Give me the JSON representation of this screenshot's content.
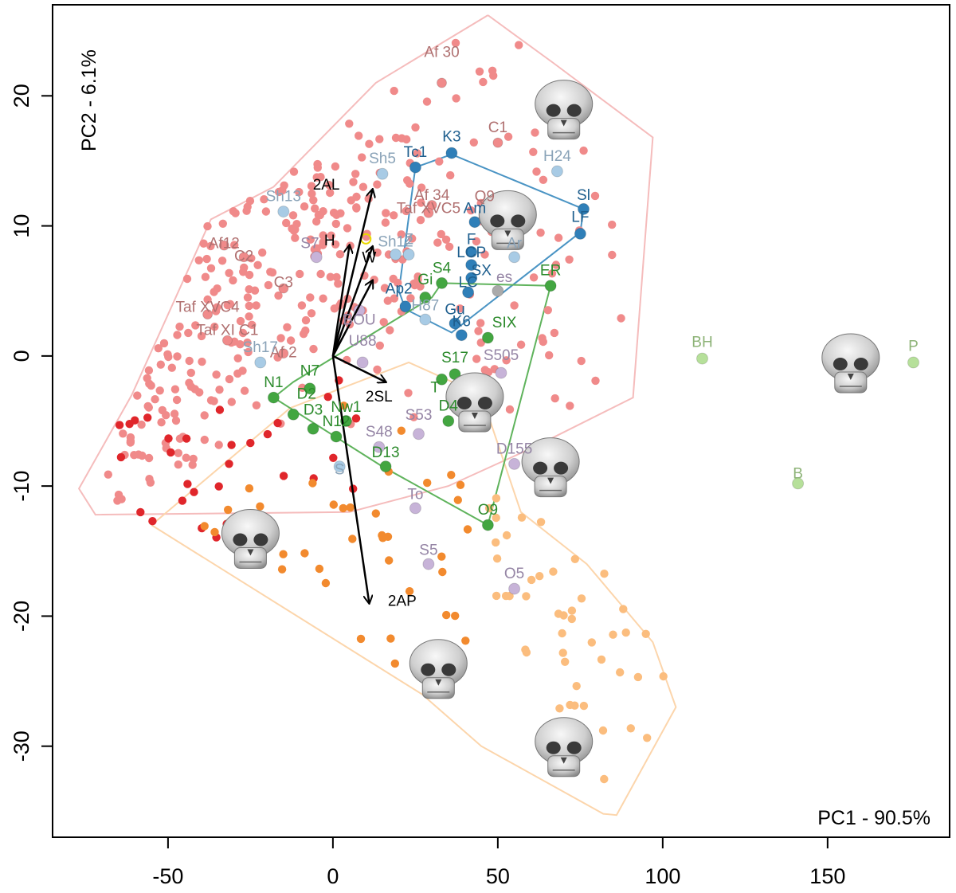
{
  "chart_data": {
    "type": "scatter",
    "title": "",
    "xlabel": "PC1 - 90.5%",
    "ylabel": "PC2 - 6.1%",
    "xlim": [
      -85,
      187
    ],
    "ylim": [
      -37,
      27
    ],
    "xticks": [
      -50,
      0,
      50,
      100,
      150
    ],
    "yticks": [
      -30,
      -20,
      -10,
      0,
      10,
      20
    ],
    "colors": {
      "pinkFill": "#f08a8a",
      "pinkLine": "#f5bcbc",
      "redFill": "#e0262b",
      "orangeFill": "#f28a2e",
      "lightOrangeFill": "#fbbd7e",
      "orangeLine": "#fcd5ab",
      "blueFill": "#2f7fb8",
      "blueLine": "#4a94c4",
      "lightBlueFill": "#a8cbe5",
      "greenFill": "#43a641",
      "greenLine": "#5fb35c",
      "lightGreenFill": "#b6e09a",
      "lavenderFill": "#c7b3d8",
      "greyFill": "#aaaaaa",
      "yellow": "#e8d800",
      "pinkText": "#b07070",
      "blueText": "#1f5f8e",
      "lightBlueText": "#8aa3b8",
      "greenText": "#2b8a2b",
      "lightGreenText": "#8db377",
      "lavenderText": "#9585a5"
    },
    "hulls": [
      {
        "name": "hull-pink",
        "stroke": "pinkLine",
        "points": [
          [
            47,
            26.2
          ],
          [
            67,
            22.5
          ],
          [
            97,
            16.8
          ],
          [
            91,
            -3.2
          ],
          [
            61,
            -7
          ],
          [
            35,
            -10
          ],
          [
            5,
            -12
          ],
          [
            -72,
            -12.2
          ],
          [
            -77,
            -10.2
          ],
          [
            -61,
            -3
          ],
          [
            -37,
            10.5
          ],
          [
            -18,
            13
          ],
          [
            13,
            21
          ],
          [
            47,
            26.2
          ]
        ]
      },
      {
        "name": "hull-orange",
        "stroke": "orangeLine",
        "points": [
          [
            -55,
            -13
          ],
          [
            -13,
            -4
          ],
          [
            23,
            -0.5
          ],
          [
            45,
            -3
          ],
          [
            57,
            -12
          ],
          [
            77,
            -16
          ],
          [
            97,
            -22
          ],
          [
            104,
            -27
          ],
          [
            86,
            -35.3
          ],
          [
            82,
            -35.2
          ],
          [
            45,
            -30
          ],
          [
            27,
            -26
          ],
          [
            -55,
            -13
          ]
        ]
      },
      {
        "name": "hull-blue",
        "stroke": "blueLine",
        "points": [
          [
            25,
            14.5
          ],
          [
            36,
            15.5
          ],
          [
            76,
            11.3
          ],
          [
            75,
            9.5
          ],
          [
            36,
            1.8
          ],
          [
            22,
            3.6
          ],
          [
            20,
            5
          ],
          [
            25,
            14.5
          ]
        ]
      },
      {
        "name": "hull-green",
        "stroke": "greenLine",
        "points": [
          [
            -18,
            -3.2
          ],
          [
            -12,
            -2
          ],
          [
            30,
            4.5
          ],
          [
            33,
            5.6
          ],
          [
            66,
            5.4
          ],
          [
            47,
            -13
          ],
          [
            15,
            -8.5
          ],
          [
            -18,
            -3.2
          ]
        ]
      }
    ],
    "arrows": [
      {
        "label": "2AL",
        "x": 12,
        "y": 12.8,
        "lx": -2,
        "ly": 12.8
      },
      {
        "label": "H",
        "x": 5,
        "y": 8.5,
        "lx": -1,
        "ly": 8.5
      },
      {
        "label": "W",
        "x": 12,
        "y": 8.4,
        "lx": 11,
        "ly": 7.2
      },
      {
        "label": "",
        "x": 12,
        "y": 5.8,
        "lx": 0,
        "ly": 0
      },
      {
        "label": "2SL",
        "x": 16,
        "y": -2,
        "lx": 14,
        "ly": -3.5
      },
      {
        "label": "2AP",
        "x": 11,
        "y": -19,
        "lx": 21,
        "ly": -19.2
      }
    ],
    "labeled_points": [
      {
        "label": "Af 30",
        "x": 33,
        "y": 21,
        "g": "pink",
        "lx": 33,
        "ly": 23
      },
      {
        "label": "C1",
        "x": 50,
        "y": 16.4,
        "g": "pink",
        "lx": 50,
        "ly": 17.2
      },
      {
        "label": "Af 34",
        "x": 30,
        "y": 11.6,
        "g": "pink",
        "lx": 30,
        "ly": 12
      },
      {
        "label": "Taf XVC5",
        "x": 29,
        "y": 11,
        "g": "pink",
        "lx": 29,
        "ly": 11
      },
      {
        "label": "Q9",
        "x": 46,
        "y": 11.2,
        "g": "pink",
        "lx": 46,
        "ly": 11.9
      },
      {
        "label": "Af12",
        "x": -33,
        "y": 8.5,
        "g": "pink",
        "lx": -33,
        "ly": 8.3
      },
      {
        "label": "C2",
        "x": -27,
        "y": 7.6,
        "g": "pink",
        "lx": -27,
        "ly": 7.3
      },
      {
        "label": "C3",
        "x": -15,
        "y": 5.2,
        "g": "pink",
        "lx": -15,
        "ly": 5.3
      },
      {
        "label": "Taf XVC4",
        "x": -38,
        "y": 3.2,
        "g": "pink",
        "lx": -38,
        "ly": 3.4
      },
      {
        "label": "Taf XI C1",
        "x": -32,
        "y": 1.2,
        "g": "pink",
        "lx": -32,
        "ly": 1.6
      },
      {
        "label": "Af 2",
        "x": -15,
        "y": 0.2,
        "g": "pink",
        "lx": -15,
        "ly": -0.1
      },
      {
        "label": "Sh5",
        "x": 15,
        "y": 14,
        "g": "lightblue",
        "lx": 15,
        "ly": 14.8
      },
      {
        "label": "Sh13",
        "x": -15,
        "y": 11.1,
        "g": "lightblue",
        "lx": -15,
        "ly": 11.9
      },
      {
        "label": "H24",
        "x": 68,
        "y": 14.2,
        "g": "lightblue",
        "lx": 68,
        "ly": 15
      },
      {
        "label": "Sh12",
        "x": 19,
        "y": 7.8,
        "g": "lightblue",
        "lx": 19,
        "ly": 8.4
      },
      {
        "label": "Ar",
        "x": 55,
        "y": 7.6,
        "g": "lightblue",
        "lx": 55,
        "ly": 8.3
      },
      {
        "label": "H87",
        "x": 28,
        "y": 2.8,
        "g": "lightblue",
        "lx": 28,
        "ly": 3.5
      },
      {
        "label": "Sh17",
        "x": -22,
        "y": -0.5,
        "g": "lightblue",
        "lx": -22,
        "ly": 0.3
      },
      {
        "label": "S",
        "x": 2,
        "y": -8.5,
        "g": "lightblue",
        "lx": 2,
        "ly": -9.1
      },
      {
        "label": "Tc1",
        "x": 25,
        "y": 14.5,
        "g": "blue",
        "lx": 25,
        "ly": 15.3
      },
      {
        "label": "K3",
        "x": 36,
        "y": 15.6,
        "g": "blue",
        "lx": 36,
        "ly": 16.5
      },
      {
        "label": "Sl",
        "x": 76,
        "y": 11.3,
        "g": "blue",
        "lx": 76,
        "ly": 12
      },
      {
        "label": "Am",
        "x": 43,
        "y": 10.3,
        "g": "blue",
        "lx": 43,
        "ly": 11
      },
      {
        "label": "LF",
        "x": 75,
        "y": 9.4,
        "g": "blue",
        "lx": 75,
        "ly": 10.3
      },
      {
        "label": "F",
        "x": 42,
        "y": 8,
        "g": "blue",
        "lx": 42,
        "ly": 8.6
      },
      {
        "label": "LCP",
        "x": 42,
        "y": 7,
        "g": "blue",
        "lx": 42,
        "ly": 7.6
      },
      {
        "label": "SX",
        "x": 42,
        "y": 6,
        "g": "blue",
        "lx": 45,
        "ly": 6.2
      },
      {
        "label": "LC",
        "x": 41,
        "y": 4.9,
        "g": "blue",
        "lx": 41,
        "ly": 5.3
      },
      {
        "label": "Ap2",
        "x": 22,
        "y": 3.8,
        "g": "blue",
        "lx": 20,
        "ly": 4.8
      },
      {
        "label": "Gu",
        "x": 37,
        "y": 2.5,
        "g": "blue",
        "lx": 37,
        "ly": 3.2
      },
      {
        "label": "K6",
        "x": 39,
        "y": 1.6,
        "g": "blue",
        "lx": 39,
        "ly": 2.3
      },
      {
        "label": "S4",
        "x": 33,
        "y": 5.6,
        "g": "green",
        "lx": 33,
        "ly": 6.4
      },
      {
        "label": "Gi",
        "x": 28,
        "y": 4.5,
        "g": "green",
        "lx": 28,
        "ly": 5.5
      },
      {
        "label": "ER",
        "x": 66,
        "y": 5.4,
        "g": "green",
        "lx": 66,
        "ly": 6.2
      },
      {
        "label": "SIX",
        "x": 47,
        "y": 1.4,
        "g": "green",
        "lx": 52,
        "ly": 2.2
      },
      {
        "label": "S17",
        "x": 37,
        "y": -1.4,
        "g": "green",
        "lx": 37,
        "ly": -0.5
      },
      {
        "label": "T",
        "x": 33,
        "y": -1.8,
        "g": "green",
        "lx": 31,
        "ly": -2.8
      },
      {
        "label": "D4",
        "x": 35,
        "y": -5,
        "g": "green",
        "lx": 35,
        "ly": -4.2
      },
      {
        "label": "N1",
        "x": -18,
        "y": -3.2,
        "g": "green",
        "lx": -18,
        "ly": -2.4
      },
      {
        "label": "N7",
        "x": -7,
        "y": -2.5,
        "g": "green",
        "lx": -7,
        "ly": -1.5
      },
      {
        "label": "D2",
        "x": -12,
        "y": -4.5,
        "g": "green",
        "lx": -8,
        "ly": -3.3
      },
      {
        "label": "Nw1",
        "x": 4,
        "y": -5,
        "g": "green",
        "lx": 4,
        "ly": -4.3
      },
      {
        "label": "D3",
        "x": -6,
        "y": -5.6,
        "g": "green",
        "lx": -6,
        "ly": -4.5
      },
      {
        "label": "N12",
        "x": 1,
        "y": -6.2,
        "g": "green",
        "lx": 1,
        "ly": -5.4
      },
      {
        "label": "D13",
        "x": 16,
        "y": -8.5,
        "g": "green",
        "lx": 16,
        "ly": -7.8
      },
      {
        "label": "O9",
        "x": 47,
        "y": -13,
        "g": "green",
        "lx": 47,
        "ly": -12.2
      },
      {
        "label": "BH",
        "x": 112,
        "y": -0.2,
        "g": "lightgreen",
        "lx": 112,
        "ly": 0.7
      },
      {
        "label": "P",
        "x": 176,
        "y": -0.5,
        "g": "lightgreen",
        "lx": 176,
        "ly": 0.4
      },
      {
        "label": "B",
        "x": 141,
        "y": -9.8,
        "g": "lightgreen",
        "lx": 141,
        "ly": -9.4
      },
      {
        "label": "S7",
        "x": -5,
        "y": 7.6,
        "g": "lavender",
        "lx": -7,
        "ly": 8.3
      },
      {
        "label": "BOU",
        "x": 8,
        "y": 3.5,
        "g": "lavender",
        "lx": 8,
        "ly": 2.4
      },
      {
        "label": "U88",
        "x": 9,
        "y": -0.5,
        "g": "lavender",
        "lx": 9,
        "ly": 0.8
      },
      {
        "label": "S505",
        "x": 51,
        "y": -1.3,
        "g": "lavender",
        "lx": 51,
        "ly": -0.3
      },
      {
        "label": "S53",
        "x": 26,
        "y": -6,
        "g": "lavender",
        "lx": 26,
        "ly": -4.9
      },
      {
        "label": "S48",
        "x": 14,
        "y": -7,
        "g": "lavender",
        "lx": 14,
        "ly": -6.2
      },
      {
        "label": "D155",
        "x": 55,
        "y": -8.3,
        "g": "lavender",
        "lx": 55,
        "ly": -7.5
      },
      {
        "label": "To",
        "x": 25,
        "y": -11.7,
        "g": "lavender",
        "lx": 25,
        "ly": -11
      },
      {
        "label": "S5",
        "x": 29,
        "y": -16,
        "g": "lavender",
        "lx": 29,
        "ly": -15.3
      },
      {
        "label": "O5",
        "x": 55,
        "y": -17.9,
        "g": "lavender",
        "lx": 55,
        "ly": -17.1
      },
      {
        "label": "es",
        "x": 50,
        "y": 5,
        "g": "grey",
        "lx": 52,
        "ly": 5.7
      },
      {
        "label": "Z",
        "x": 23,
        "y": 7.8,
        "g": "lightblue",
        "lx": 23,
        "ly": 8.6
      }
    ],
    "groups": [
      {
        "name": "pink",
        "fill": "pinkFill",
        "n": 330,
        "seed": 7,
        "shape": [
          [
            47,
            26
          ],
          [
            67,
            22
          ],
          [
            92,
            15
          ],
          [
            88,
            -2
          ],
          [
            55,
            -6
          ],
          [
            20,
            -5
          ],
          [
            -20,
            -6
          ],
          [
            -72,
            -12
          ],
          [
            -76,
            -10
          ],
          [
            -60,
            -3
          ],
          [
            -38,
            10
          ],
          [
            -18,
            13
          ],
          [
            13,
            20
          ]
        ],
        "bias": [
          [
            -40,
            3
          ],
          [
            -15,
            8
          ],
          [
            10,
            10
          ],
          [
            -55,
            -5
          ]
        ]
      },
      {
        "name": "red",
        "fill": "redFill",
        "n": 30,
        "seed": 11,
        "shape": [
          [
            -65,
            -5
          ],
          [
            -10,
            -1
          ],
          [
            20,
            -2
          ],
          [
            25,
            -8
          ],
          [
            -5,
            -12
          ],
          [
            -50,
            -15
          ],
          [
            -68,
            -10
          ]
        ]
      },
      {
        "name": "orange",
        "fill": "orangeFill",
        "n": 40,
        "seed": 19,
        "shape": [
          [
            -50,
            -14
          ],
          [
            -20,
            -6
          ],
          [
            0,
            -3
          ],
          [
            30,
            -4
          ],
          [
            55,
            -14
          ],
          [
            40,
            -22
          ],
          [
            45,
            -30
          ],
          [
            5,
            -21
          ],
          [
            -30,
            -15
          ]
        ]
      },
      {
        "name": "lightorange",
        "fill": "lightOrangeFill",
        "n": 45,
        "seed": 23,
        "shape": [
          [
            45,
            -10
          ],
          [
            70,
            -13
          ],
          [
            95,
            -20
          ],
          [
            104,
            -27
          ],
          [
            97,
            -33
          ],
          [
            85,
            -35
          ],
          [
            65,
            -28
          ],
          [
            50,
            -20
          ]
        ]
      }
    ],
    "skull_images": [
      {
        "name": "skull-top-right",
        "x": 70,
        "y": 19
      },
      {
        "name": "skull-mid",
        "x": 53,
        "y": 10.5
      },
      {
        "name": "skull-right",
        "x": 157,
        "y": -0.5
      },
      {
        "name": "skull-center",
        "x": 43,
        "y": -3.5
      },
      {
        "name": "skull-lower-right",
        "x": 66,
        "y": -8.5
      },
      {
        "name": "skull-lower-left",
        "x": -25,
        "y": -14
      },
      {
        "name": "skull-bottom",
        "x": 32,
        "y": -24
      },
      {
        "name": "skull-bottom-right",
        "x": 70,
        "y": -30
      }
    ]
  }
}
